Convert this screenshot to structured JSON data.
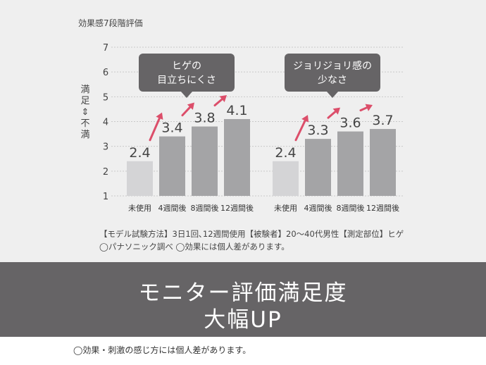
{
  "chart_data": {
    "type": "bar",
    "title": "効果感7段階評価",
    "ylabel": "満足\n⇕\n不満",
    "ylim": [
      1,
      7
    ],
    "yticks": [
      1,
      2,
      3,
      4,
      5,
      6,
      7
    ],
    "categories": [
      "未使用",
      "4週間後",
      "8週間後",
      "12週間後"
    ],
    "groups": [
      {
        "callout": [
          "ヒゲの",
          "目立ちにくさ"
        ],
        "values": [
          2.4,
          3.4,
          3.8,
          4.1
        ],
        "value_labels": [
          "2.4",
          "3.4",
          "3.8",
          "4.1"
        ]
      },
      {
        "callout": [
          "ジョリジョリ感の",
          "少なさ"
        ],
        "values": [
          2.4,
          3.3,
          3.6,
          3.7
        ],
        "value_labels": [
          "2.4",
          "3.3",
          "3.6",
          "3.7"
        ]
      }
    ],
    "colors": {
      "baseline_bar": "#d4d4d6",
      "bar": "#a4a4a6",
      "arrow": "#dc4e6a",
      "callout": "#666466"
    }
  },
  "notes": [
    "【モデル試験方法】3日1回､12週間使用【被験者】20〜40代男性【測定部位】ヒゲ",
    "◯パナソニック調べ ◯効果には個人差があります。"
  ],
  "headline": [
    "モニター評価満足度",
    "大幅UP"
  ],
  "footer_note": "◯効果・刺激の感じ方には個人差があります。"
}
